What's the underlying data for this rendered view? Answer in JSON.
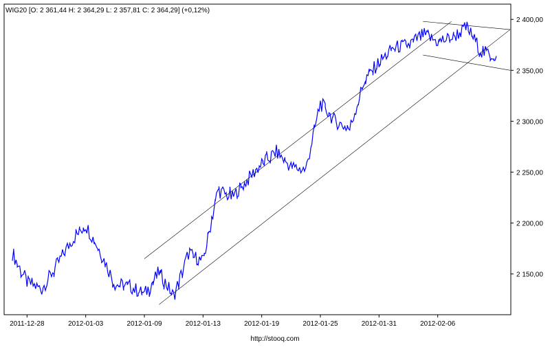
{
  "header": {
    "legend_text": "WIG20 [O: 2 361,44  H: 2 364,29  L: 2 357,81  C: 2 364,29] (+0,12%)"
  },
  "footer": {
    "source": "http://stooq.com"
  },
  "colors": {
    "series": "#0000ff",
    "channel_lines": "#000000",
    "background": "#ffffff"
  },
  "chart_data": {
    "type": "line",
    "title": "",
    "xlabel": "",
    "ylabel": "",
    "ylim": [
      2110,
      2415
    ],
    "y_ticks": [
      "2 150,00",
      "2 200,00",
      "2 250,00",
      "2 300,00",
      "2 350,00",
      "2 400,00"
    ],
    "y_tick_values": [
      2150,
      2200,
      2250,
      2300,
      2350,
      2400
    ],
    "x_ticks": [
      "2011-12-28",
      "2012-01-03",
      "2012-01-09",
      "2012-01-13",
      "2012-01-19",
      "2012-01-25",
      "2012-01-31",
      "2012-02-06"
    ],
    "grid": false,
    "legend": "top-left",
    "series": [
      {
        "name": "WIG20",
        "x": [
          "2011-12-27",
          "2011-12-28",
          "2011-12-29",
          "2011-12-30",
          "2012-01-02",
          "2012-01-03",
          "2012-01-04",
          "2012-01-05",
          "2012-01-06",
          "2012-01-09",
          "2012-01-10",
          "2012-01-11",
          "2012-01-12",
          "2012-01-13",
          "2012-01-16",
          "2012-01-17",
          "2012-01-18",
          "2012-01-19",
          "2012-01-20",
          "2012-01-23",
          "2012-01-24",
          "2012-01-25",
          "2012-01-26",
          "2012-01-27",
          "2012-01-30",
          "2012-01-31",
          "2012-02-01",
          "2012-02-02",
          "2012-02-03",
          "2012-02-06",
          "2012-02-07",
          "2012-02-08",
          "2012-02-09",
          "2012-02-10"
        ],
        "values": [
          2170,
          2142,
          2135,
          2158,
          2182,
          2198,
          2172,
          2140,
          2138,
          2130,
          2152,
          2128,
          2170,
          2162,
          2232,
          2225,
          2242,
          2258,
          2270,
          2255,
          2252,
          2318,
          2300,
          2292,
          2340,
          2358,
          2372,
          2375,
          2385,
          2378,
          2382,
          2392,
          2368,
          2364
        ]
      }
    ]
  }
}
